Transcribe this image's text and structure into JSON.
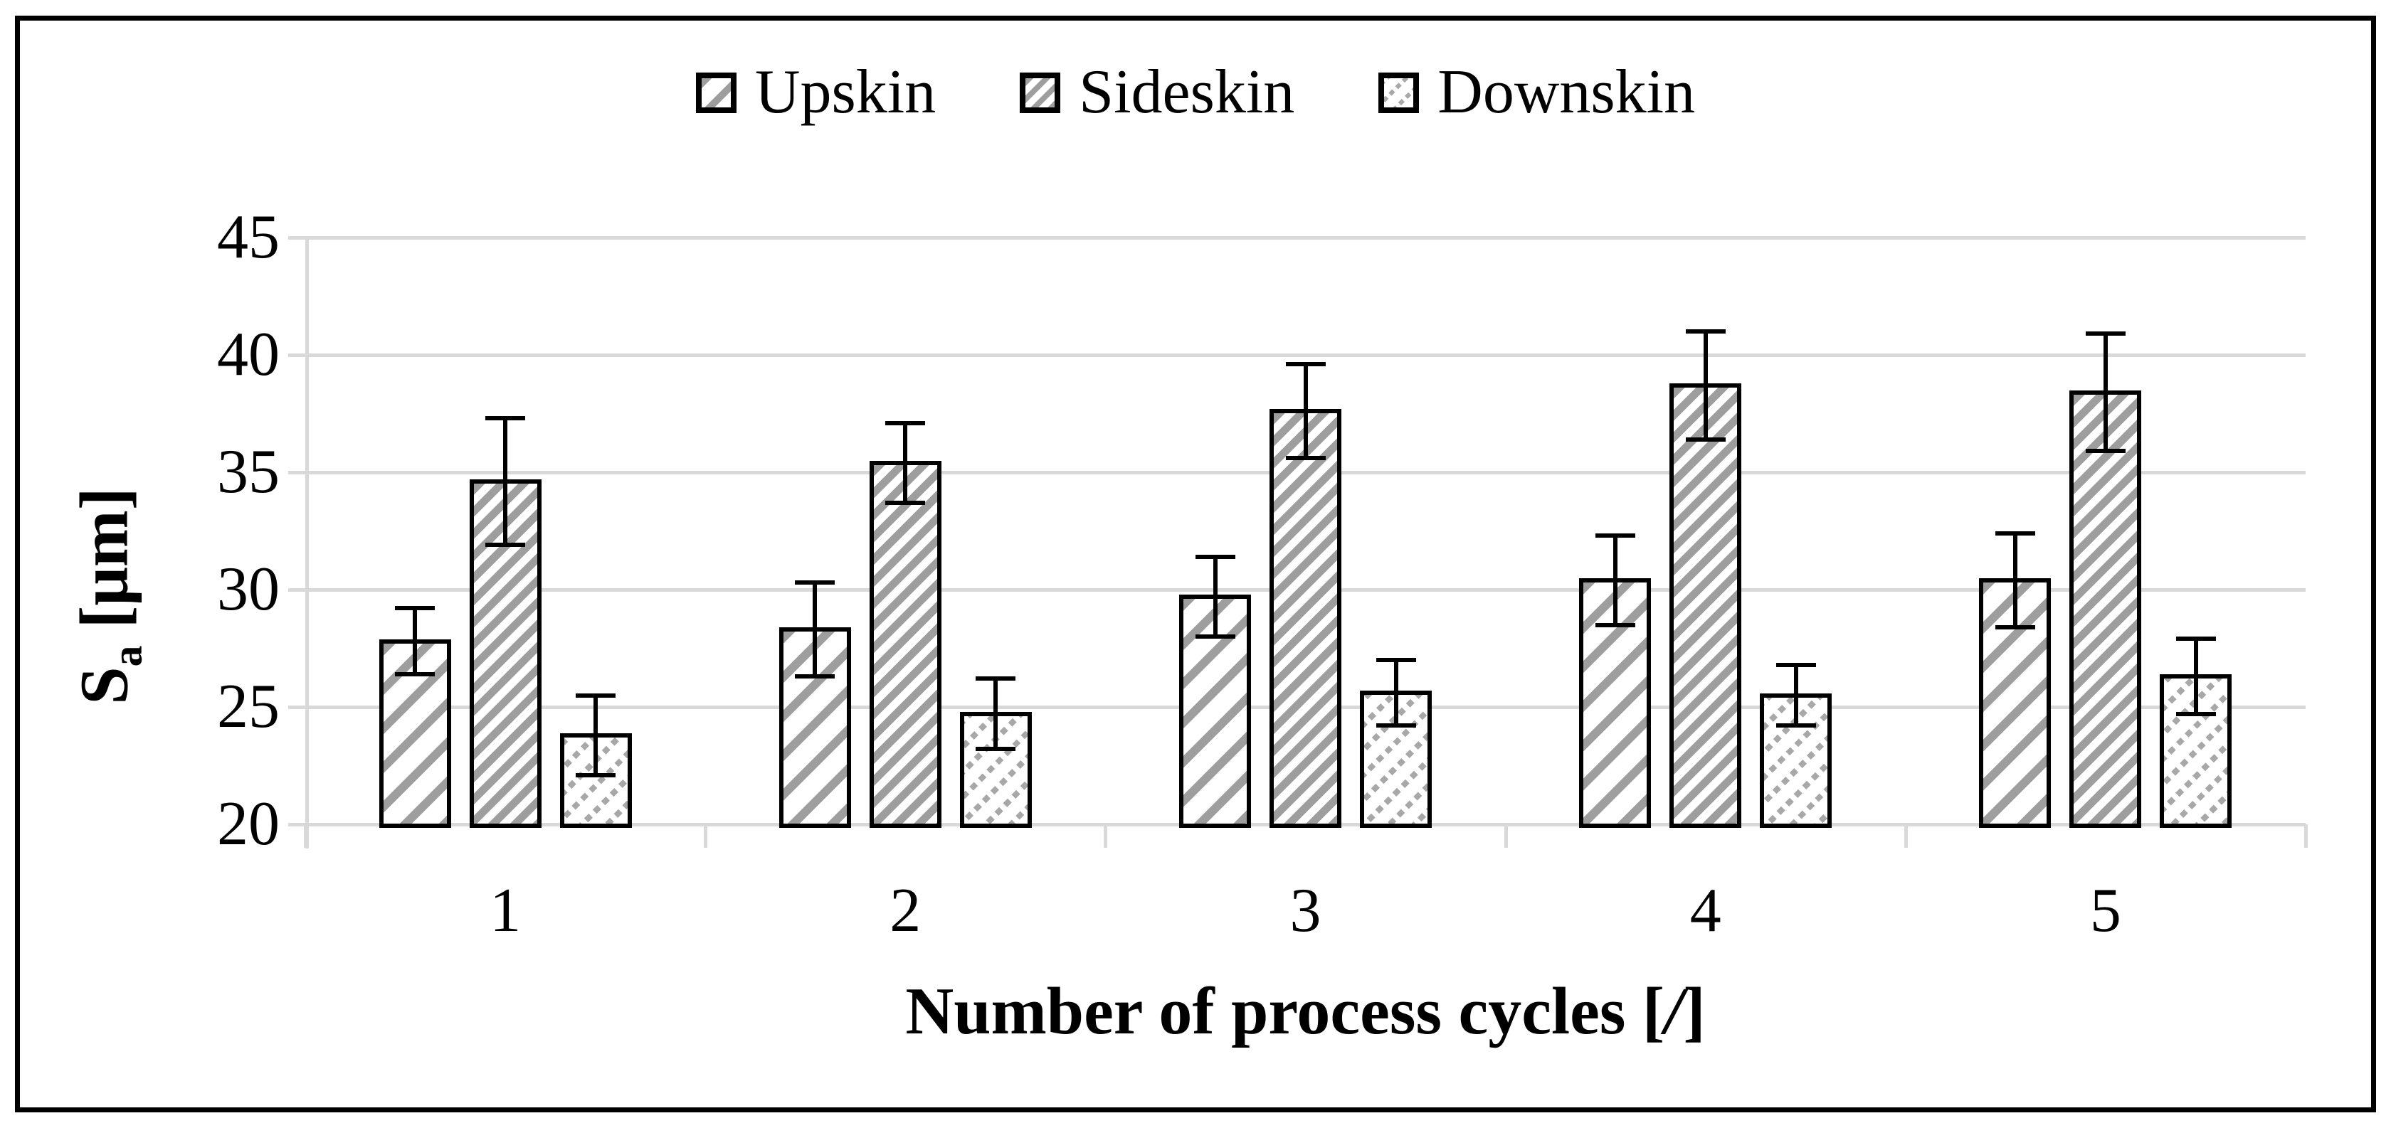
{
  "legend": {
    "items": [
      "Upskin",
      "Sideskin",
      "Downskin"
    ]
  },
  "axes": {
    "y_title": {
      "main": "S",
      "sub": "a",
      "rest": " [μm]"
    },
    "x_title": {
      "pre": "Number of process cycles [",
      "slash": "/",
      "post": "]"
    }
  },
  "chart_data": {
    "type": "bar",
    "title": "",
    "categories": [
      "1",
      "2",
      "3",
      "4",
      "5"
    ],
    "series": [
      {
        "name": "Upskin",
        "pattern": "wide-diagonal-stripes",
        "values": [
          27.8,
          28.3,
          29.7,
          30.4,
          30.4
        ],
        "errors": [
          1.4,
          2.0,
          1.7,
          1.9,
          2.0
        ]
      },
      {
        "name": "Sideskin",
        "pattern": "dense-diagonal-stripes",
        "values": [
          34.6,
          35.4,
          37.6,
          38.7,
          38.4
        ],
        "errors": [
          2.7,
          1.7,
          2.0,
          2.3,
          2.5
        ]
      },
      {
        "name": "Downskin",
        "pattern": "dashed-diagonal-stripes",
        "values": [
          23.8,
          24.7,
          25.6,
          25.5,
          26.3
        ],
        "errors": [
          1.7,
          1.5,
          1.4,
          1.3,
          1.6
        ]
      }
    ],
    "xlabel": "Number of process cycles [/]",
    "ylabel": "Sa [μm]",
    "ylim": [
      20,
      45
    ],
    "y_ticks": [
      20,
      25,
      30,
      35,
      40,
      45
    ],
    "grid": "horizontal",
    "legend_position": "top",
    "error_bars": true,
    "colors": {
      "hatch": "#9E9E9E",
      "grid": "#D9D9D9",
      "bar_border": "#000000",
      "text": "#000000",
      "background": "#FFFFFF"
    }
  }
}
